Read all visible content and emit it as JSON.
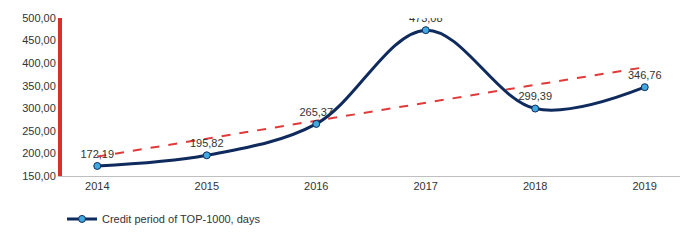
{
  "chart_data": {
    "type": "line",
    "categories": [
      "2014",
      "2015",
      "2016",
      "2017",
      "2018",
      "2019"
    ],
    "series": [
      {
        "name": "Credit period of TOP-1000, days",
        "color": "#0f2a5c",
        "marker": "circle",
        "line_style": "solid",
        "values": [
          172.19,
          195.82,
          265.37,
          473.08,
          299.39,
          346.76
        ],
        "value_labels": [
          "172,19",
          "195,82",
          "265,37",
          "473,08",
          "299,39",
          "346,76"
        ]
      },
      {
        "color": "#e03a3a",
        "line_style": "dashed",
        "values": [
          193,
          233,
          272,
          312,
          352,
          391
        ]
      }
    ],
    "ylim": [
      150,
      500
    ],
    "yticks": [
      {
        "value": 150,
        "label": "150,00"
      },
      {
        "value": 200,
        "label": "200,00"
      },
      {
        "value": 250,
        "label": "250,00"
      },
      {
        "value": 300,
        "label": "300,00"
      },
      {
        "value": 350,
        "label": "350,00"
      },
      {
        "value": 400,
        "label": "400,00"
      },
      {
        "value": 450,
        "label": "450,00"
      },
      {
        "value": 500,
        "label": "500,00"
      }
    ],
    "grid": false,
    "data_labels": true,
    "legend": "bottom-left"
  }
}
